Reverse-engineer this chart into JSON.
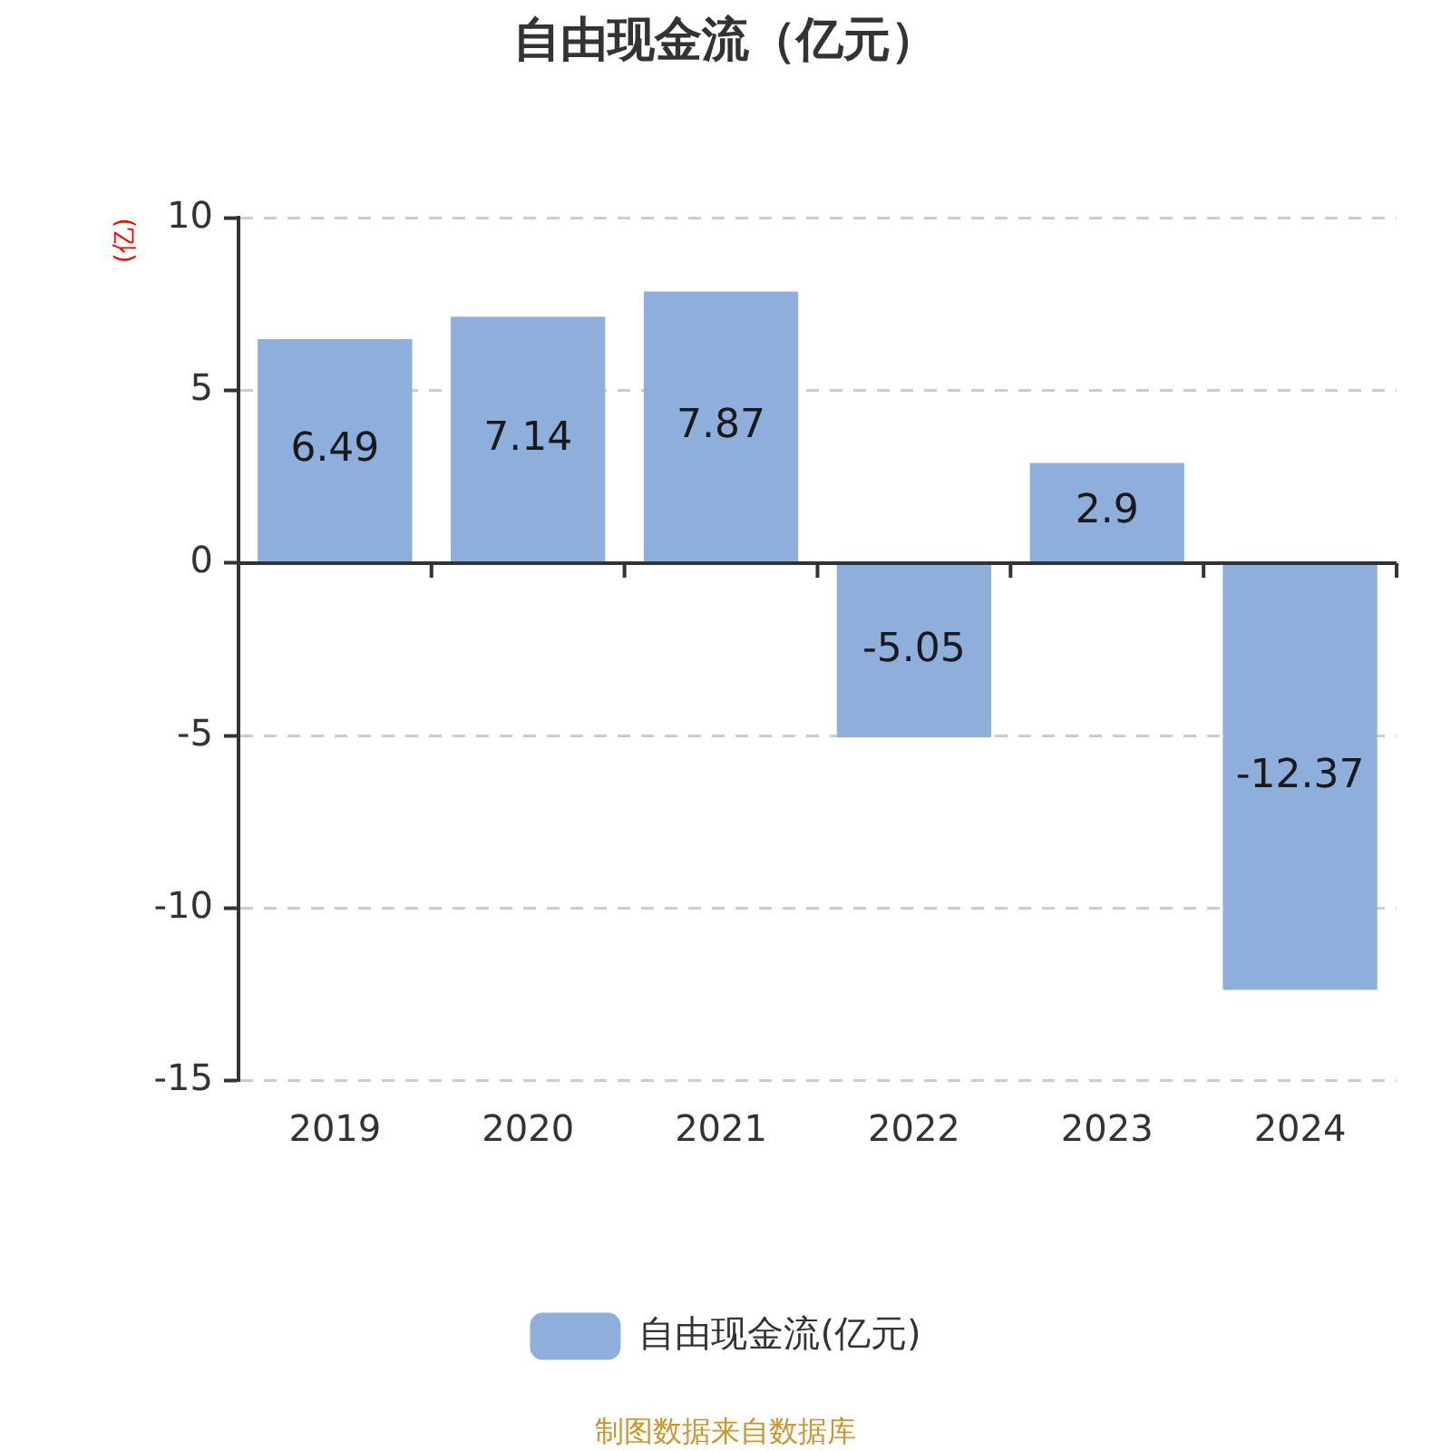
{
  "chart_data": {
    "type": "bar",
    "title": "自由现金流（亿元）",
    "ylabel": "(亿)",
    "categories": [
      "2019",
      "2020",
      "2021",
      "2022",
      "2023",
      "2024"
    ],
    "series": [
      {
        "name": "自由现金流(亿元)",
        "color": "#8eaedb",
        "values": [
          6.49,
          7.14,
          7.87,
          -5.05,
          2.9,
          -12.37
        ]
      }
    ],
    "ylim": [
      -15,
      10
    ],
    "yticks": [
      -15,
      -10,
      -5,
      0,
      5,
      10
    ],
    "grid": "y",
    "legend": "bottom",
    "data_labels": true,
    "annotations": [
      "制图数据来自数据库"
    ]
  }
}
